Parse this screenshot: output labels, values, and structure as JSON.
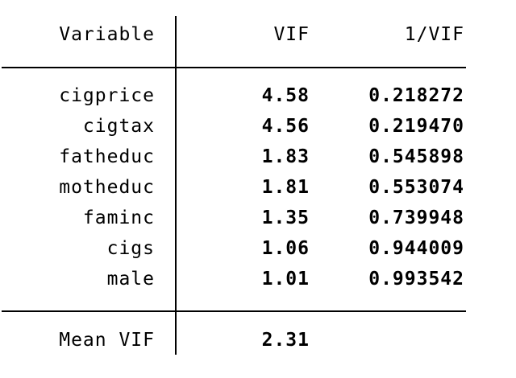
{
  "table": {
    "header": {
      "variable": "Variable",
      "vif": "VIF",
      "inv_vif": "1/VIF"
    },
    "rows": [
      {
        "variable": "cigprice",
        "vif": "4.58",
        "inv_vif": "0.218272"
      },
      {
        "variable": "cigtax",
        "vif": "4.56",
        "inv_vif": "0.219470"
      },
      {
        "variable": "fatheduc",
        "vif": "1.83",
        "inv_vif": "0.545898"
      },
      {
        "variable": "motheduc",
        "vif": "1.81",
        "inv_vif": "0.553074"
      },
      {
        "variable": "faminc",
        "vif": "1.35",
        "inv_vif": "0.739948"
      },
      {
        "variable": "cigs",
        "vif": "1.06",
        "inv_vif": "0.944009"
      },
      {
        "variable": "male",
        "vif": "1.01",
        "inv_vif": "0.993542"
      }
    ],
    "footer": {
      "label": "Mean VIF",
      "value": "2.31"
    }
  }
}
